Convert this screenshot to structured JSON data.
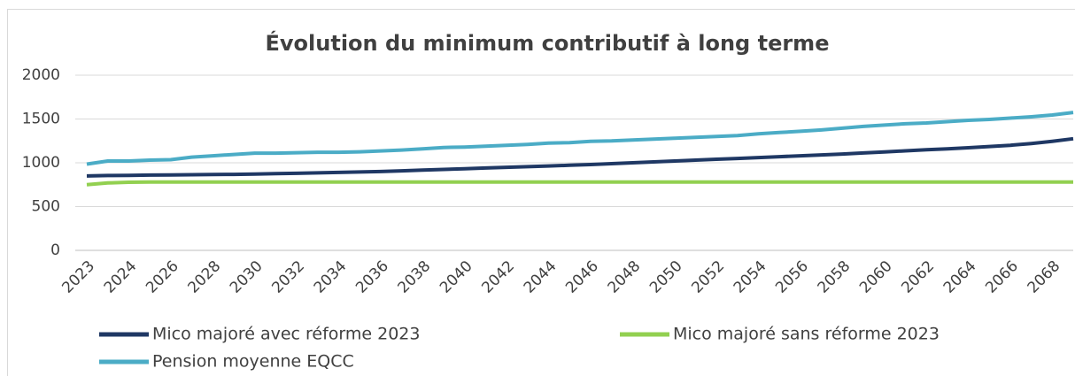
{
  "chart_data": {
    "type": "line",
    "title": "Évolution du minimum contributif à long terme",
    "categories": [
      "2023",
      null,
      "2024",
      null,
      "2026",
      null,
      "2028",
      null,
      "2030",
      null,
      "2032",
      null,
      "2034",
      null,
      "2036",
      null,
      "2038",
      null,
      "2040",
      null,
      "2042",
      null,
      "2044",
      null,
      "2046",
      null,
      "2048",
      null,
      "2050",
      null,
      "2052",
      null,
      "2054",
      null,
      "2056",
      null,
      "2058",
      null,
      "2060",
      null,
      "2062",
      null,
      "2064",
      null,
      "2066",
      null,
      "2068",
      null
    ],
    "series": [
      {
        "name": "Mico majoré avec réforme 2023",
        "color": "#1f3864",
        "values": [
          850,
          855,
          857,
          860,
          862,
          864,
          866,
          868,
          872,
          876,
          880,
          885,
          890,
          895,
          900,
          908,
          916,
          924,
          932,
          940,
          948,
          956,
          964,
          972,
          980,
          990,
          1000,
          1010,
          1020,
          1030,
          1040,
          1050,
          1060,
          1070,
          1080,
          1090,
          1100,
          1112,
          1124,
          1136,
          1148,
          1160,
          1172,
          1186,
          1200,
          1220,
          1245,
          1275
        ]
      },
      {
        "name": "Mico majoré sans réforme 2023",
        "color": "#92d050",
        "values": [
          750,
          770,
          778,
          780,
          780,
          780,
          780,
          780,
          780,
          780,
          780,
          780,
          780,
          780,
          780,
          780,
          780,
          780,
          780,
          780,
          780,
          780,
          780,
          780,
          780,
          780,
          780,
          780,
          780,
          780,
          780,
          780,
          780,
          780,
          780,
          780,
          780,
          780,
          780,
          780,
          780,
          780,
          780,
          780,
          780,
          780,
          780,
          780
        ]
      },
      {
        "name": "Pension moyenne EQCC",
        "color": "#4bacc6",
        "values": [
          985,
          1020,
          1020,
          1030,
          1035,
          1065,
          1080,
          1095,
          1110,
          1110,
          1115,
          1120,
          1120,
          1125,
          1135,
          1145,
          1160,
          1175,
          1180,
          1190,
          1200,
          1210,
          1225,
          1230,
          1245,
          1250,
          1260,
          1270,
          1280,
          1290,
          1300,
          1310,
          1330,
          1345,
          1360,
          1375,
          1395,
          1415,
          1430,
          1445,
          1455,
          1470,
          1485,
          1495,
          1510,
          1525,
          1545,
          1575
        ]
      }
    ],
    "ylim": [
      0,
      2000
    ],
    "yticks": [
      0,
      500,
      1000,
      1500,
      2000
    ],
    "grid": true
  }
}
